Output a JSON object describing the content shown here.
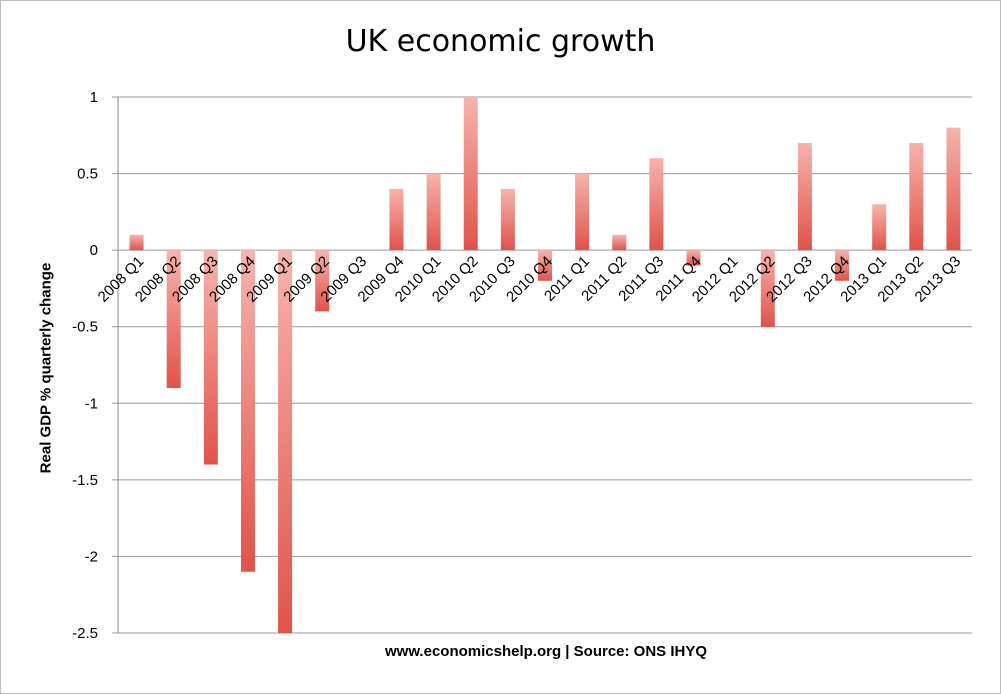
{
  "chart_data": {
    "type": "bar",
    "title": "UK economic growth",
    "xlabel": "www.economicshelp.org | Source: ONS  IHYQ",
    "ylabel": "Real GDP % quarterly change",
    "ylim": [
      -2.5,
      1
    ],
    "yticks": [
      "1",
      "0.5",
      "0",
      "-0.5",
      "-1",
      "-1.5",
      "-2",
      "-2.5"
    ],
    "ytick_values": [
      1,
      0.5,
      0,
      -0.5,
      -1,
      -1.5,
      -2,
      -2.5
    ],
    "grid": true,
    "legend": "none",
    "categories": [
      "2008 Q1",
      "2008 Q2",
      "2008 Q3",
      "2008 Q4",
      "2009 Q1",
      "2009 Q2",
      "2009 Q3",
      "2009 Q4",
      "2010 Q1",
      "2010 Q2",
      "2010 Q3",
      "2010 Q4",
      "2011 Q1",
      "2011 Q2",
      "2011 Q3",
      "2011 Q4",
      "2012 Q1",
      "2012 Q2",
      "2012 Q3",
      "2012 Q4",
      "2013 Q1",
      "2013 Q2",
      "2013 Q3"
    ],
    "values": [
      0.1,
      -0.9,
      -1.4,
      -2.1,
      -2.5,
      -0.4,
      0.0,
      0.4,
      0.5,
      1.0,
      0.4,
      -0.2,
      0.5,
      0.1,
      0.6,
      -0.1,
      0.0,
      -0.5,
      0.7,
      -0.2,
      0.3,
      0.7,
      0.8
    ],
    "bar_color_light": "#f7b3ad",
    "bar_color_dark": "#e0534a",
    "grid_color": "#9a9a9a"
  }
}
